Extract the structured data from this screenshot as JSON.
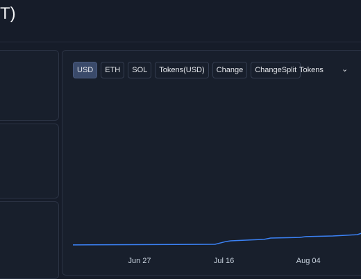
{
  "header": {
    "title": "T)"
  },
  "tabs": [
    "USD",
    "ETH",
    "SOL",
    "Tokens(USD)",
    "Change",
    "ChangeSplit"
  ],
  "dropdown": "Tokens",
  "chart_data": {
    "type": "line",
    "x": [
      0,
      32,
      34.5,
      35.5,
      43,
      44.5,
      51,
      52.5,
      58.5,
      61.5,
      64,
      65
    ],
    "series": [
      {
        "color": "#3b82f6",
        "values": [
          0.9,
          1.3,
          3.0,
          3.4,
          4.3,
          5.1,
          5.5,
          6.0,
          6.4,
          6.8,
          7.2,
          8.1
        ]
      }
    ],
    "xlim": [
      0,
      65
    ],
    "ylim": [
      0,
      100
    ],
    "xticks": [
      {
        "value": 15,
        "label": "Jun 27"
      },
      {
        "value": 34,
        "label": "Jul 16"
      },
      {
        "value": 53,
        "label": "Aug 04"
      }
    ]
  }
}
